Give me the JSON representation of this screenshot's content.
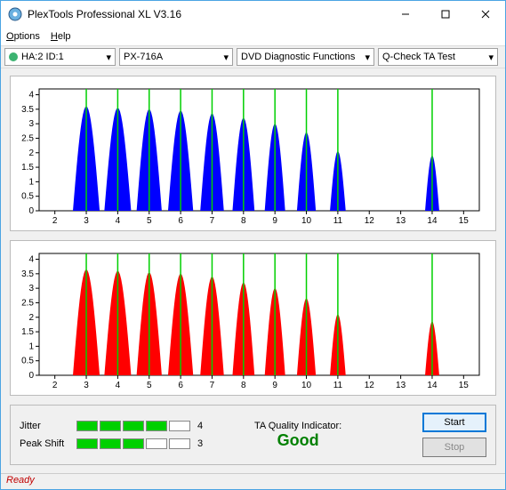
{
  "window": {
    "title": "PlexTools Professional XL V3.16"
  },
  "menu": {
    "options": "Options",
    "help": "Help"
  },
  "toolbar": {
    "drive": "HA:2 ID:1",
    "device": "PX-716A",
    "function": "DVD Diagnostic Functions",
    "test": "Q-Check TA Test"
  },
  "charts": {
    "xlim": [
      1.5,
      15.5
    ],
    "ylim": [
      0,
      4.2
    ],
    "xticks": [
      2,
      3,
      4,
      5,
      6,
      7,
      8,
      9,
      10,
      11,
      12,
      13,
      14,
      15
    ],
    "yticks": [
      0,
      0.5,
      1,
      1.5,
      2,
      2.5,
      3,
      3.5,
      4
    ],
    "green_lines": [
      3,
      4,
      5,
      6,
      7,
      8,
      9,
      10,
      11,
      14
    ],
    "bg": "#ffffff",
    "grid": "#000000",
    "top": {
      "fill": "#0000ff",
      "peaks": [
        {
          "c": 3,
          "h": 3.6,
          "w": 0.85
        },
        {
          "c": 4,
          "h": 3.55,
          "w": 0.85
        },
        {
          "c": 5,
          "h": 3.5,
          "w": 0.8
        },
        {
          "c": 6,
          "h": 3.45,
          "w": 0.8
        },
        {
          "c": 7,
          "h": 3.35,
          "w": 0.75
        },
        {
          "c": 8,
          "h": 3.2,
          "w": 0.7
        },
        {
          "c": 9,
          "h": 3.0,
          "w": 0.65
        },
        {
          "c": 10,
          "h": 2.7,
          "w": 0.6
        },
        {
          "c": 11,
          "h": 2.05,
          "w": 0.5
        },
        {
          "c": 14,
          "h": 1.9,
          "w": 0.45
        }
      ]
    },
    "bottom": {
      "fill": "#ff0000",
      "peaks": [
        {
          "c": 3,
          "h": 3.65,
          "w": 0.85
        },
        {
          "c": 4,
          "h": 3.6,
          "w": 0.85
        },
        {
          "c": 5,
          "h": 3.55,
          "w": 0.8
        },
        {
          "c": 6,
          "h": 3.5,
          "w": 0.8
        },
        {
          "c": 7,
          "h": 3.4,
          "w": 0.75
        },
        {
          "c": 8,
          "h": 3.2,
          "w": 0.7
        },
        {
          "c": 9,
          "h": 3.0,
          "w": 0.65
        },
        {
          "c": 10,
          "h": 2.65,
          "w": 0.6
        },
        {
          "c": 11,
          "h": 2.1,
          "w": 0.5
        },
        {
          "c": 14,
          "h": 1.85,
          "w": 0.45
        }
      ]
    }
  },
  "metrics": {
    "jitter": {
      "label": "Jitter",
      "filled": 4,
      "total": 5,
      "value": "4"
    },
    "peak_shift": {
      "label": "Peak Shift",
      "filled": 3,
      "total": 5,
      "value": "3"
    }
  },
  "ta": {
    "label": "TA Quality Indicator:",
    "value": "Good",
    "color": "#008000"
  },
  "buttons": {
    "start": "Start",
    "stop": "Stop"
  },
  "status": "Ready"
}
